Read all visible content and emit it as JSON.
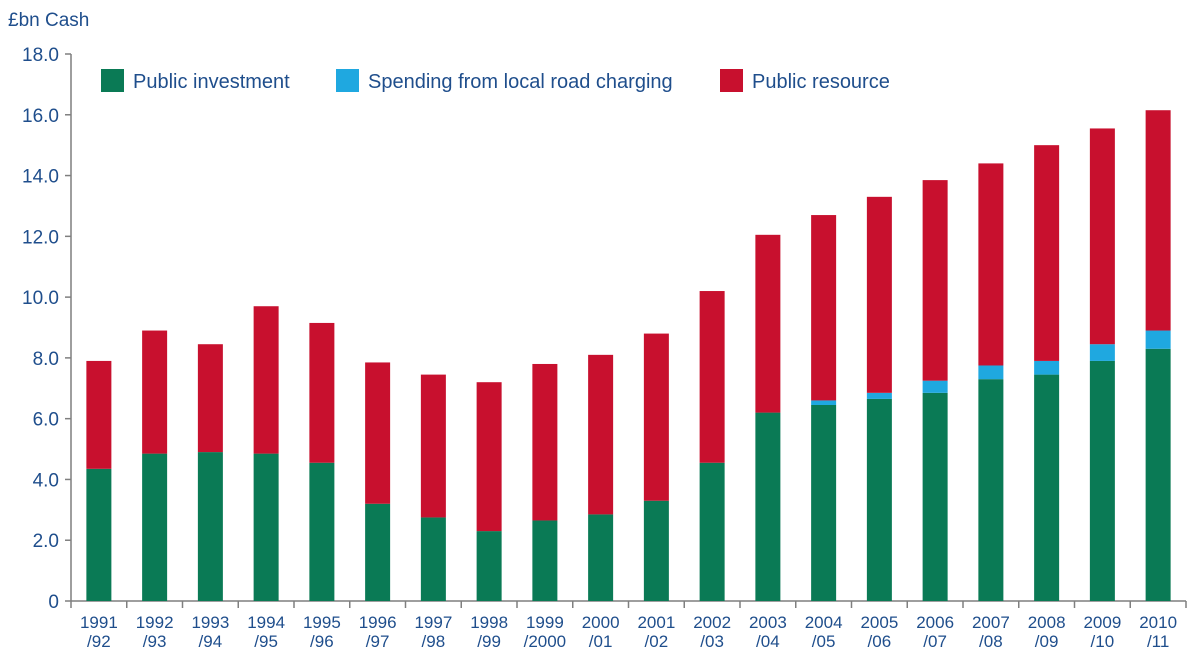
{
  "chart_data": {
    "type": "bar",
    "stacked": true,
    "ylabel": "£bn Cash",
    "ylim": [
      0,
      18
    ],
    "yticks": [
      "0",
      "2.0",
      "4.0",
      "6.0",
      "8.0",
      "10.0",
      "12.0",
      "14.0",
      "16.0",
      "18.0"
    ],
    "categories": [
      [
        "1991",
        "/92"
      ],
      [
        "1992",
        "/93"
      ],
      [
        "1993",
        "/94"
      ],
      [
        "1994",
        "/95"
      ],
      [
        "1995",
        "/96"
      ],
      [
        "1996",
        "/97"
      ],
      [
        "1997",
        "/98"
      ],
      [
        "1998",
        "/99"
      ],
      [
        "1999",
        "/2000"
      ],
      [
        "2000",
        "/01"
      ],
      [
        "2001",
        "/02"
      ],
      [
        "2002",
        "/03"
      ],
      [
        "2003",
        "/04"
      ],
      [
        "2004",
        "/05"
      ],
      [
        "2005",
        "/06"
      ],
      [
        "2006",
        "/07"
      ],
      [
        "2007",
        "/08"
      ],
      [
        "2008",
        "/09"
      ],
      [
        "2009",
        "/10"
      ],
      [
        "2010",
        "/11"
      ]
    ],
    "series": [
      {
        "name": "Public investment",
        "color": "#0a7a55",
        "values": [
          4.35,
          4.85,
          4.9,
          4.85,
          4.55,
          3.2,
          2.75,
          2.3,
          2.65,
          2.85,
          3.3,
          4.55,
          6.2,
          6.45,
          6.65,
          6.85,
          7.3,
          7.45,
          7.9,
          8.3
        ]
      },
      {
        "name": "Spending from local road charging",
        "color": "#1fa8e0",
        "values": [
          0,
          0,
          0,
          0,
          0,
          0,
          0,
          0,
          0,
          0,
          0,
          0,
          0,
          0.15,
          0.2,
          0.4,
          0.45,
          0.45,
          0.55,
          0.6
        ]
      },
      {
        "name": "Public resource",
        "color": "#c8102e",
        "values": [
          3.55,
          4.05,
          3.55,
          4.85,
          4.6,
          4.65,
          4.7,
          4.9,
          5.15,
          5.25,
          5.5,
          5.65,
          5.85,
          6.1,
          6.45,
          6.6,
          6.65,
          7.1,
          7.1,
          7.25
        ]
      }
    ],
    "legend": "top-left"
  }
}
